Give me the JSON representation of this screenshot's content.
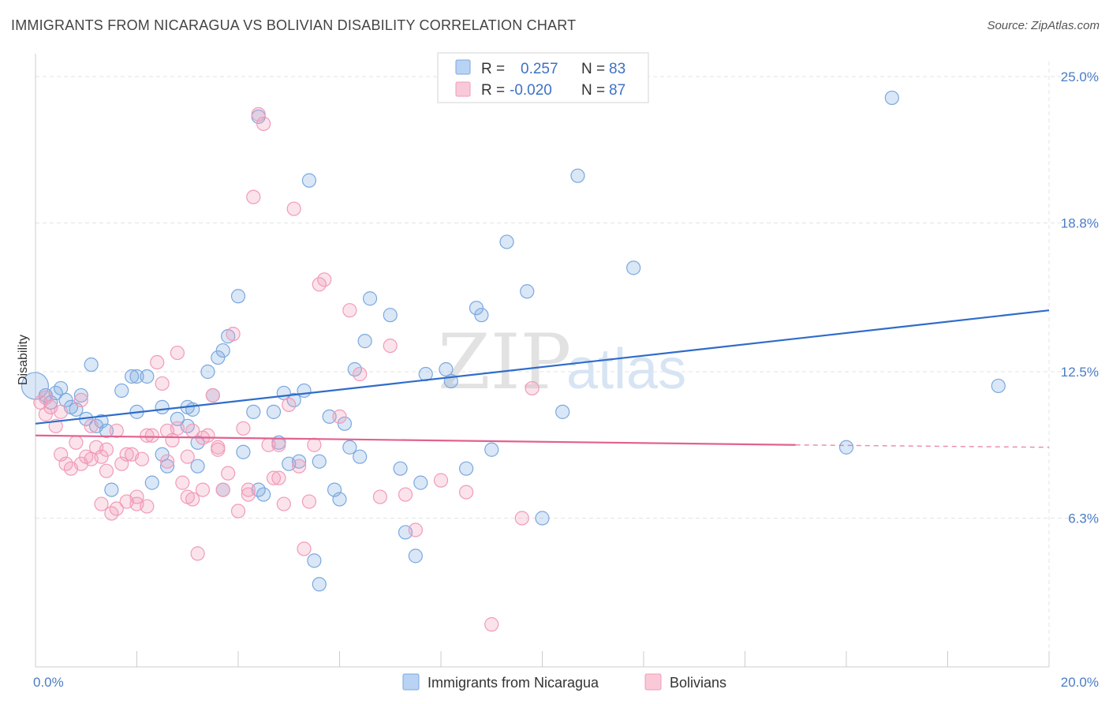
{
  "title": "IMMIGRANTS FROM NICARAGUA VS BOLIVIAN DISABILITY CORRELATION CHART",
  "source": "Source: ZipAtlas.com",
  "watermark": {
    "zip": "ZIP",
    "atlas": "atlas"
  },
  "colors": {
    "blue": "#7aa8e0",
    "pink": "#f19bb8",
    "blue_line": "#2f6cc9",
    "pink_line": "#e2618f"
  },
  "legend": {
    "r_label": "R =",
    "n_label": "N =",
    "items": [
      {
        "r": "0.257",
        "n": "83"
      },
      {
        "r": "-0.020",
        "n": "87"
      }
    ]
  },
  "bottom_legend": [
    "Immigrants from Nicaragua",
    "Bolivians"
  ],
  "chart_data": {
    "type": "scatter",
    "title": "IMMIGRANTS FROM NICARAGUA VS BOLIVIAN DISABILITY CORRELATION CHART",
    "xlabel": "",
    "ylabel": "Disability",
    "xlim": [
      0,
      20
    ],
    "ylim": [
      0,
      26
    ],
    "x_tick_labels": [
      "0.0%",
      "20.0%"
    ],
    "y_ticks": [
      6.3,
      12.5,
      18.8,
      25.0
    ],
    "y_tick_labels": [
      "6.3%",
      "12.5%",
      "18.8%",
      "25.0%"
    ],
    "grid": true,
    "legend_position": "top-center",
    "series": [
      {
        "name": "Immigrants from Nicaragua",
        "trend": {
          "x": [
            0,
            20
          ],
          "y": [
            10.3,
            15.1
          ]
        },
        "points": [
          [
            0.1,
            11.9
          ],
          [
            0.2,
            11.5
          ],
          [
            0.3,
            11.2
          ],
          [
            0.4,
            11.6
          ],
          [
            0.5,
            11.8
          ],
          [
            0.6,
            11.3
          ],
          [
            0.7,
            11.0
          ],
          [
            0.9,
            11.5
          ],
          [
            1.0,
            10.5
          ],
          [
            1.1,
            12.8
          ],
          [
            1.3,
            10.4
          ],
          [
            1.4,
            10.0
          ],
          [
            1.5,
            7.5
          ],
          [
            1.7,
            11.7
          ],
          [
            2.0,
            10.8
          ],
          [
            2.0,
            12.3
          ],
          [
            2.2,
            12.3
          ],
          [
            2.3,
            7.8
          ],
          [
            2.5,
            11.0
          ],
          [
            2.6,
            8.5
          ],
          [
            2.8,
            10.5
          ],
          [
            3.0,
            11.0
          ],
          [
            3.1,
            10.9
          ],
          [
            3.2,
            9.5
          ],
          [
            3.2,
            8.5
          ],
          [
            3.4,
            12.5
          ],
          [
            3.5,
            11.5
          ],
          [
            3.6,
            13.1
          ],
          [
            3.7,
            13.4
          ],
          [
            3.7,
            7.5
          ],
          [
            3.8,
            14.0
          ],
          [
            4.0,
            15.7
          ],
          [
            4.1,
            9.1
          ],
          [
            4.3,
            10.8
          ],
          [
            4.4,
            7.5
          ],
          [
            4.5,
            7.3
          ],
          [
            4.7,
            10.8
          ],
          [
            4.8,
            9.5
          ],
          [
            4.9,
            11.6
          ],
          [
            5.0,
            8.6
          ],
          [
            5.1,
            11.3
          ],
          [
            5.2,
            8.7
          ],
          [
            5.3,
            11.7
          ],
          [
            5.4,
            20.6
          ],
          [
            5.5,
            4.5
          ],
          [
            5.6,
            3.5
          ],
          [
            5.6,
            8.7
          ],
          [
            5.8,
            10.6
          ],
          [
            5.9,
            7.5
          ],
          [
            6.1,
            10.3
          ],
          [
            6.2,
            9.3
          ],
          [
            6.3,
            12.6
          ],
          [
            6.4,
            8.9
          ],
          [
            6.5,
            13.8
          ],
          [
            6.6,
            15.6
          ],
          [
            7.0,
            14.9
          ],
          [
            7.3,
            5.7
          ],
          [
            7.5,
            4.7
          ],
          [
            7.6,
            7.8
          ],
          [
            7.7,
            12.4
          ],
          [
            8.1,
            12.6
          ],
          [
            8.2,
            12.1
          ],
          [
            8.5,
            8.4
          ],
          [
            8.7,
            15.2
          ],
          [
            8.8,
            14.9
          ],
          [
            9.3,
            18.0
          ],
          [
            9.7,
            15.9
          ],
          [
            10.0,
            6.3
          ],
          [
            10.4,
            10.8
          ],
          [
            10.7,
            20.8
          ],
          [
            11.8,
            16.9
          ],
          [
            16.0,
            9.3
          ],
          [
            16.9,
            24.1
          ],
          [
            19.0,
            11.9
          ],
          [
            4.4,
            23.3
          ],
          [
            1.9,
            12.3
          ],
          [
            2.5,
            9.0
          ],
          [
            0.8,
            10.9
          ],
          [
            1.2,
            10.2
          ],
          [
            3.0,
            10.2
          ],
          [
            6.0,
            7.1
          ],
          [
            7.2,
            8.4
          ],
          [
            9.0,
            9.2
          ]
        ]
      },
      {
        "name": "Bolivians",
        "trend": {
          "x": [
            0,
            15
          ],
          "y": [
            9.8,
            9.4
          ]
        },
        "trend_dashed": {
          "x": [
            15,
            20
          ],
          "y": [
            9.4,
            9.3
          ]
        },
        "points": [
          [
            0.1,
            11.2
          ],
          [
            0.2,
            10.7
          ],
          [
            0.3,
            11.0
          ],
          [
            0.4,
            10.2
          ],
          [
            0.5,
            10.8
          ],
          [
            0.6,
            8.6
          ],
          [
            0.7,
            8.4
          ],
          [
            0.8,
            9.5
          ],
          [
            0.9,
            8.6
          ],
          [
            1.0,
            8.9
          ],
          [
            1.1,
            10.2
          ],
          [
            1.2,
            9.3
          ],
          [
            1.3,
            8.9
          ],
          [
            1.4,
            9.2
          ],
          [
            1.5,
            6.5
          ],
          [
            1.6,
            6.7
          ],
          [
            1.7,
            8.6
          ],
          [
            1.8,
            9.0
          ],
          [
            1.9,
            9.0
          ],
          [
            2.0,
            6.9
          ],
          [
            2.1,
            8.8
          ],
          [
            2.2,
            6.8
          ],
          [
            2.3,
            9.8
          ],
          [
            2.4,
            12.9
          ],
          [
            2.5,
            12.0
          ],
          [
            2.6,
            10.0
          ],
          [
            2.7,
            9.6
          ],
          [
            2.8,
            13.3
          ],
          [
            2.9,
            7.8
          ],
          [
            3.0,
            8.9
          ],
          [
            3.1,
            7.1
          ],
          [
            3.2,
            4.8
          ],
          [
            3.3,
            7.5
          ],
          [
            3.4,
            9.8
          ],
          [
            3.5,
            11.5
          ],
          [
            3.6,
            9.3
          ],
          [
            3.7,
            7.5
          ],
          [
            3.8,
            8.2
          ],
          [
            3.9,
            14.1
          ],
          [
            4.0,
            6.6
          ],
          [
            4.1,
            10.1
          ],
          [
            4.2,
            7.3
          ],
          [
            4.3,
            19.9
          ],
          [
            4.4,
            23.4
          ],
          [
            4.5,
            23.0
          ],
          [
            4.6,
            9.4
          ],
          [
            4.7,
            8.0
          ],
          [
            4.8,
            8.0
          ],
          [
            4.9,
            6.9
          ],
          [
            5.0,
            11.1
          ],
          [
            5.1,
            19.4
          ],
          [
            5.2,
            8.5
          ],
          [
            5.3,
            5.0
          ],
          [
            5.4,
            7.0
          ],
          [
            5.5,
            9.4
          ],
          [
            5.6,
            16.2
          ],
          [
            5.7,
            16.4
          ],
          [
            6.0,
            10.6
          ],
          [
            6.2,
            15.1
          ],
          [
            6.4,
            12.4
          ],
          [
            6.8,
            7.2
          ],
          [
            7.0,
            13.6
          ],
          [
            7.3,
            7.3
          ],
          [
            7.5,
            5.8
          ],
          [
            8.0,
            7.9
          ],
          [
            8.5,
            7.4
          ],
          [
            9.0,
            1.8
          ],
          [
            9.6,
            6.3
          ],
          [
            9.8,
            11.8
          ],
          [
            1.3,
            6.9
          ],
          [
            0.2,
            11.4
          ],
          [
            1.6,
            10.0
          ],
          [
            2.0,
            7.2
          ],
          [
            2.8,
            10.1
          ],
          [
            3.3,
            9.7
          ],
          [
            0.9,
            11.3
          ],
          [
            1.4,
            8.3
          ],
          [
            2.2,
            9.8
          ],
          [
            3.0,
            7.2
          ],
          [
            3.6,
            9.2
          ],
          [
            4.2,
            7.5
          ],
          [
            0.5,
            9.0
          ],
          [
            1.1,
            8.8
          ],
          [
            1.8,
            7.0
          ],
          [
            2.6,
            8.7
          ],
          [
            3.1,
            10.0
          ],
          [
            4.8,
            9.4
          ]
        ]
      }
    ]
  }
}
